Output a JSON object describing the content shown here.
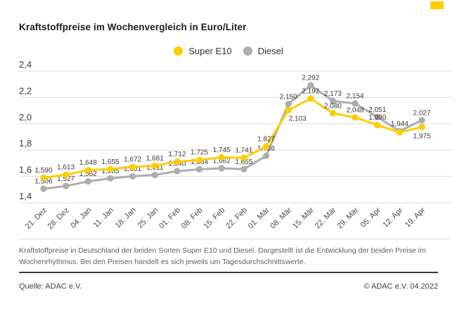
{
  "brand": {
    "accent_color": "#FFCC00",
    "mark": "adac-yellow-square"
  },
  "header": {
    "title": "Kraftstoffpreise im Wochenvergleich in Euro/Liter"
  },
  "legend": {
    "position": "top-center",
    "items": [
      {
        "label": "Super E10",
        "color": "#FFCC00"
      },
      {
        "label": "Diesel",
        "color": "#ADADAD"
      }
    ]
  },
  "chart_data": {
    "type": "line",
    "title": "Kraftstoffpreise im Wochenvergleich in Euro/Liter",
    "unit": "Euro/Liter",
    "grid": "horizontal",
    "legend_position": "top-center",
    "ylim": [
      1.4,
      2.4
    ],
    "y_ticks": [
      {
        "value": 2.4,
        "label": "2,4"
      },
      {
        "value": 2.2,
        "label": "2,2"
      },
      {
        "value": 2.0,
        "label": "2,0"
      },
      {
        "value": 1.8,
        "label": "1,8"
      },
      {
        "value": 1.6,
        "label": "1,6"
      },
      {
        "value": 1.4,
        "label": "1,4"
      }
    ],
    "categories": [
      "21. Dez",
      "28. Dez",
      "04. Jan",
      "11. Jan",
      "18. Jan",
      "25. Jan",
      "01. Feb",
      "08. Feb",
      "15. Feb",
      "22. Feb",
      "01. Mär",
      "08. Mär",
      "15. Mär",
      "22. Mär",
      "29. Mär",
      "05. Apr",
      "12. Apr",
      "19. Apr"
    ],
    "x_label_rotation": -45,
    "series": [
      {
        "name": "Diesel",
        "color": "#ADADAD",
        "values": [
          1.506,
          1.527,
          1.562,
          1.585,
          1.601,
          1.611,
          1.64,
          1.654,
          1.662,
          1.655,
          1.756,
          2.15,
          2.292,
          2.173,
          2.154,
          2.051,
          1.944,
          2.027
        ],
        "labels": [
          "1,506",
          "1,527",
          "1,562",
          "1,585",
          "1,601",
          "1,611",
          "1,640",
          "1,654",
          "1,662",
          "1,655",
          "1,756",
          "2,150",
          "2,292",
          "2,173",
          "2,154",
          "2,051",
          "1,944",
          "2,027"
        ],
        "label_placement": {}
      },
      {
        "name": "Super E10",
        "color": "#FFCC00",
        "values": [
          1.59,
          1.613,
          1.648,
          1.655,
          1.672,
          1.681,
          1.712,
          1.725,
          1.745,
          1.741,
          1.827,
          2.103,
          2.192,
          2.08,
          2.048,
          1.99,
          1.935,
          1.975
        ],
        "labels": [
          "1,590",
          "1,613",
          "1,648",
          "1,655",
          "1,672",
          "1,681",
          "1,712",
          "1,725",
          "1,745",
          "1,741",
          "1,827",
          "2,103",
          "2,192",
          "2,080",
          "2,048",
          "1,990",
          "",
          "1,975"
        ],
        "label_placement": {
          "11": "below-right",
          "16": "none",
          "17": "below"
        }
      }
    ]
  },
  "footer": {
    "description_lines": [
      "Kraftstoffpreise in Deutschland der beiden Sorten Super E10 und Diesel. Dargestellt ist die Entwicklung der beiden Preise im",
      "Wochenrhythmus. Bei den Preisen handelt es sich jeweils um Tagesdurchschnittswerte."
    ],
    "source": "Quelle: ADAC e.V.",
    "copyright": "© ADAC e.V. 04.2022"
  }
}
